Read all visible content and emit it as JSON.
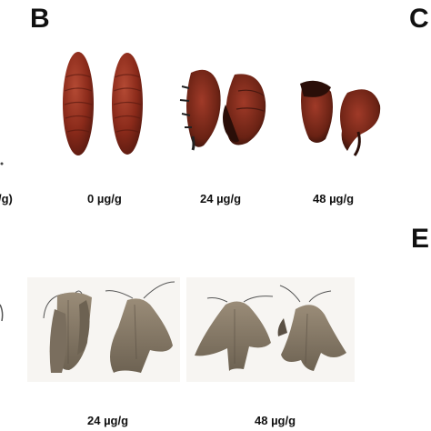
{
  "panels": {
    "B": {
      "letter": "B"
    },
    "C": {
      "letter": "C"
    },
    "E": {
      "letter": "E"
    }
  },
  "labels": {
    "clipped_left_top": "/g)",
    "pupae_0": "0 µg/g",
    "pupae_24": "24 µg/g",
    "pupae_48": "48 µg/g",
    "moths_24": "24 µg/g",
    "moths_48": "48 µg/g"
  },
  "colors": {
    "pupa_healthy": "#8a2a1a",
    "pupa_dark": "#3a1510",
    "moth_body": "#8c7f6e",
    "moth_dark": "#5a5044"
  }
}
